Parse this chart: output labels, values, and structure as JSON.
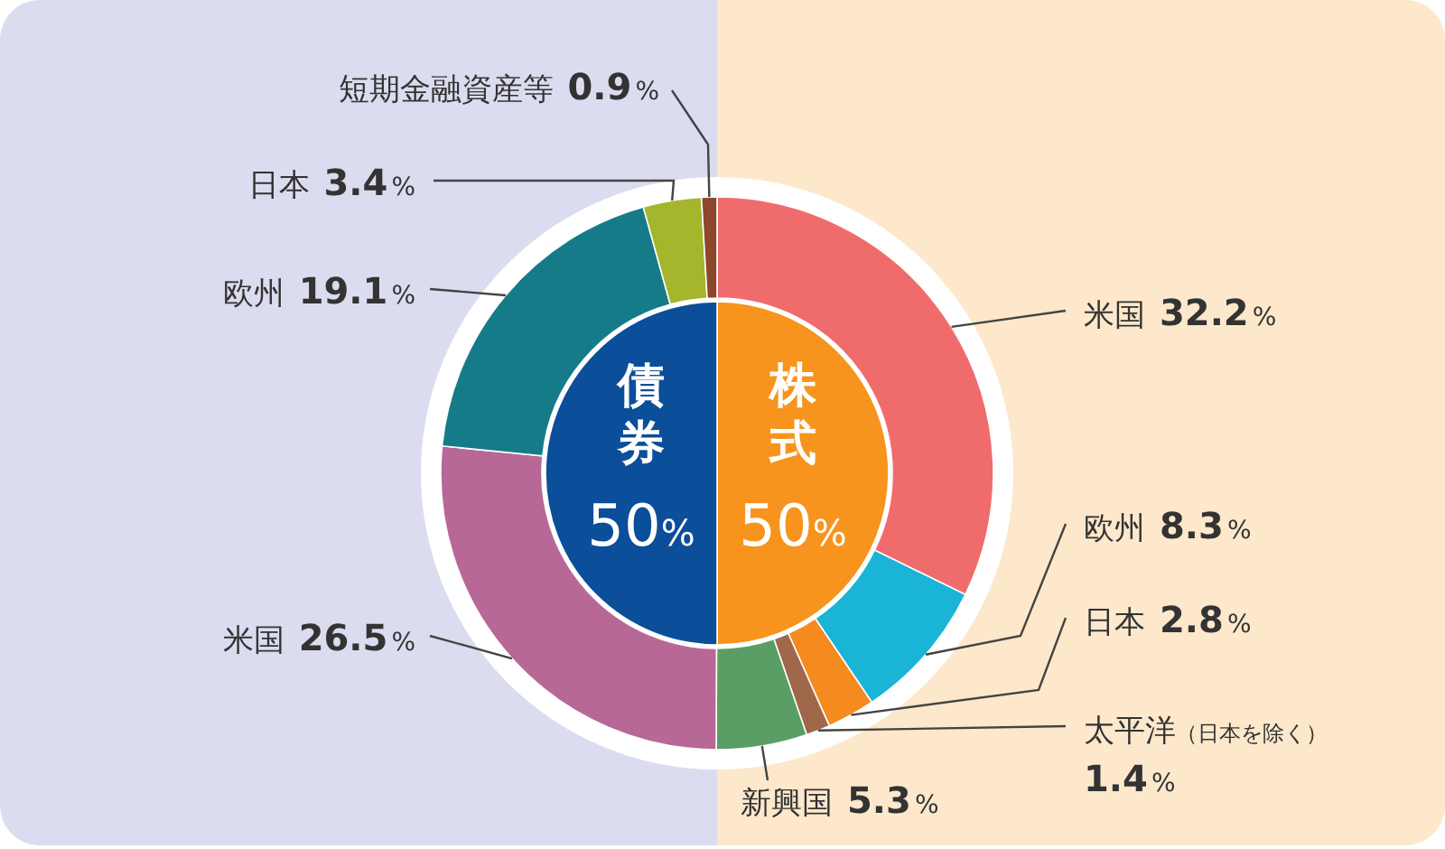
{
  "chart_data": [
    {
      "type": "pie",
      "categories": [
        "株式",
        "債券"
      ],
      "values": [
        50,
        50
      ],
      "value_labels": [
        "50%",
        "50%"
      ],
      "colors": [
        "#f7941d",
        "#0b4e9a"
      ]
    },
    {
      "type": "donut",
      "categories": [
        "米国",
        "欧州",
        "日本",
        "太平洋（日本を除く）",
        "新興国",
        "米国",
        "欧州",
        "日本",
        "短期金融資産等"
      ],
      "values": [
        32.2,
        8.3,
        2.8,
        1.4,
        5.3,
        26.5,
        19.1,
        3.4,
        0.9
      ],
      "value_labels": [
        "32.2%",
        "8.3%",
        "2.8%",
        "1.4%",
        "5.3%",
        "26.5%",
        "19.1%",
        "3.4%",
        "0.9%"
      ],
      "colors": [
        "#f06c6c",
        "#1ab4d6",
        "#f58a1f",
        "#a0674a",
        "#5a9e66",
        "#b86896",
        "#167b89",
        "#a5b52c",
        "#8c472d"
      ]
    }
  ]
}
